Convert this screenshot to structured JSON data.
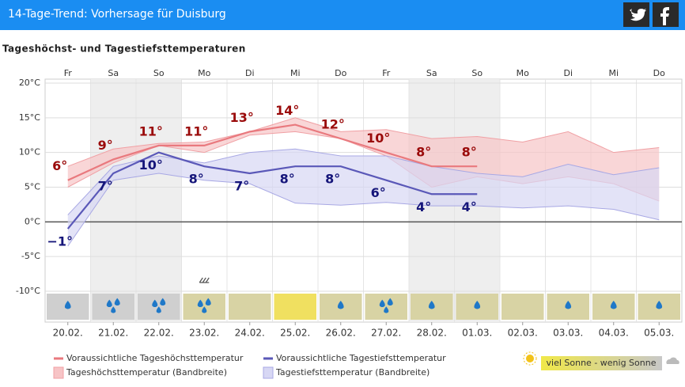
{
  "header": {
    "title": "14-Tage-Trend: Vorhersage für Duisburg"
  },
  "chart_data": {
    "type": "line",
    "title": "Tageshöchst- und Tagestiefsttemperaturen",
    "weekdays": [
      "Fr",
      "Sa",
      "So",
      "Mo",
      "Di",
      "Mi",
      "Do",
      "Fr",
      "Sa",
      "So",
      "Mo",
      "Di",
      "Mi",
      "Do"
    ],
    "categories": [
      "20.02.",
      "21.02.",
      "22.02.",
      "23.02.",
      "24.02.",
      "25.02.",
      "26.02.",
      "27.02.",
      "28.02.",
      "01.03.",
      "02.03.",
      "03.03.",
      "04.03.",
      "05.03."
    ],
    "weekend": [
      false,
      true,
      true,
      false,
      false,
      false,
      false,
      false,
      true,
      true,
      false,
      false,
      false,
      false
    ],
    "ylim": [
      -10,
      20
    ],
    "yticks": [
      {
        "value": -10,
        "label": "-10°C"
      },
      {
        "value": -5,
        "label": "-5°C"
      },
      {
        "value": 0,
        "label": "0°C"
      },
      {
        "value": 5,
        "label": "5°C"
      },
      {
        "value": 10,
        "label": "10°C"
      },
      {
        "value": 15,
        "label": "15°C"
      },
      {
        "value": 20,
        "label": "20°C"
      }
    ],
    "grid": true,
    "series": [
      {
        "name": "Voraussichtliche Tageshöchsttemperatur",
        "color": "#e9797e",
        "label_color": "#9a0a0a",
        "values": [
          6,
          9,
          11,
          11,
          13,
          14,
          12,
          10,
          8,
          8,
          null,
          null,
          null,
          null
        ],
        "value_labels": [
          "6°",
          "9°",
          "11°",
          "11°",
          "13°",
          "14°",
          "12°",
          "10°",
          "8°",
          "8°",
          null,
          null,
          null,
          null
        ]
      },
      {
        "name": "Voraussichtliche Tagestiefsttemperatur",
        "color": "#5a58b8",
        "label_color": "#15157a",
        "values": [
          -1,
          7,
          10,
          8,
          7,
          8,
          8,
          6,
          4,
          4,
          null,
          null,
          null,
          null
        ],
        "value_labels": [
          "−1°",
          "7°",
          "10°",
          "8°",
          "7°",
          "8°",
          "8°",
          "6°",
          "4°",
          "4°",
          null,
          null,
          null,
          null
        ]
      }
    ],
    "bands": [
      {
        "name": "Tageshöchsttemperatur (Bandbreite)",
        "color": "#f7c4c6",
        "line": "#f0a0a4",
        "upper": [
          8,
          10.5,
          11.3,
          11.5,
          13,
          15,
          13,
          13.3,
          12,
          12.3,
          11.5,
          13,
          10,
          10.7
        ],
        "lower": [
          5,
          8.5,
          11,
          10,
          12.5,
          13,
          12,
          9.5,
          5,
          6.5,
          5.5,
          6.5,
          5.5,
          3
        ]
      },
      {
        "name": "Tagestiefsttemperatur (Bandbreite)",
        "color": "#d7d7f4",
        "line": "#a8a8e4",
        "upper": [
          1,
          8,
          9.5,
          8.5,
          10,
          10.5,
          9.5,
          9.5,
          8,
          7,
          6.5,
          8.3,
          6.8,
          7.8
        ],
        "lower": [
          -3.5,
          6,
          7,
          6,
          5.5,
          2.7,
          2.4,
          2.8,
          2.3,
          2.3,
          2,
          2.3,
          1.8,
          0.3
        ]
      }
    ],
    "drops": [
      1,
      2,
      2,
      2,
      0,
      0,
      1,
      2,
      1,
      1,
      0,
      1,
      1,
      1
    ],
    "sun_colors": [
      "#cfcfcf",
      "#cfcfcf",
      "#cfcfcf",
      "#d8d3a4",
      "#d8d3a4",
      "#f0e060",
      "#d8d3a4",
      "#d8d3a4",
      "#d8d3a4",
      "#d8d3a4",
      "#d8d3a4",
      "#d8d3a4",
      "#d8d3a4",
      "#d8d3a4"
    ],
    "sun_legend": "viel Sonne - wenig Sonne"
  }
}
